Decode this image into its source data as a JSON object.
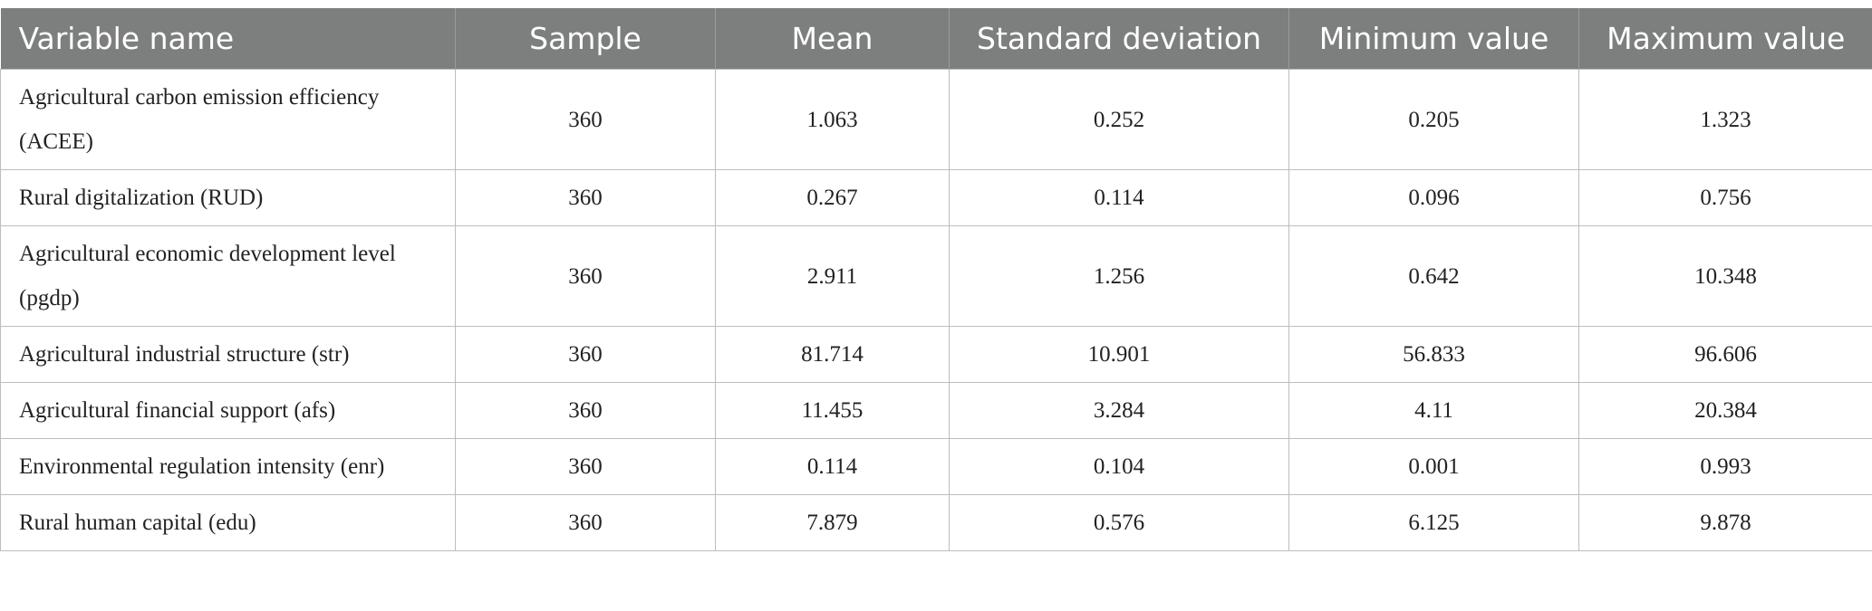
{
  "table": {
    "header": [
      "Variable name",
      "Sample",
      "Mean",
      "Standard deviation",
      "Minimum value",
      "Maximum value"
    ],
    "rows": [
      [
        "Agricultural carbon emission efficiency (ACEE)",
        "360",
        "1.063",
        "0.252",
        "0.205",
        "1.323"
      ],
      [
        "Rural digitalization (RUD)",
        "360",
        "0.267",
        "0.114",
        "0.096",
        "0.756"
      ],
      [
        "Agricultural economic development level (pgdp)",
        "360",
        "2.911",
        "1.256",
        "0.642",
        "10.348"
      ],
      [
        "Agricultural industrial structure (str)",
        "360",
        "81.714",
        "10.901",
        "56.833",
        "96.606"
      ],
      [
        "Agricultural financial support (afs)",
        "360",
        "11.455",
        "3.284",
        "4.11",
        "20.384"
      ],
      [
        "Environmental regulation intensity (enr)",
        "360",
        "0.114",
        "0.104",
        "0.001",
        "0.993"
      ],
      [
        "Rural human capital (edu)",
        "360",
        "7.879",
        "0.576",
        "6.125",
        "9.878"
      ]
    ]
  }
}
